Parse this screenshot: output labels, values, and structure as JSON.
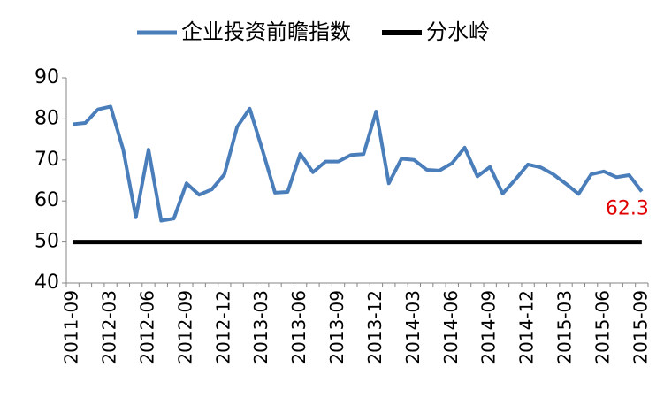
{
  "chart_data": {
    "type": "line",
    "categories": [
      "2011-09",
      null,
      null,
      "2012-03",
      null,
      null,
      "2012-06",
      null,
      null,
      "2012-09",
      null,
      null,
      "2012-12",
      null,
      null,
      "2013-03",
      null,
      null,
      "2013-06",
      null,
      null,
      "2013-09",
      null,
      null,
      "2013-12",
      null,
      null,
      "2014-03",
      null,
      null,
      "2014-06",
      null,
      null,
      "2014-09",
      null,
      null,
      "2014-12",
      null,
      null,
      "2015-03",
      null,
      null,
      "2015-06",
      null,
      null,
      "2015-09"
    ],
    "series": [
      {
        "name": "企业投资前瞻指数",
        "color": "#4a7ebb",
        "values": [
          78.7,
          79,
          82.3,
          83,
          72.5,
          56,
          72.5,
          55.2,
          55.7,
          64.3,
          61.5,
          62.8,
          66.5,
          78,
          82.5,
          72.5,
          62,
          62.2,
          71.5,
          67,
          69.6,
          69.6,
          71.2,
          71.4,
          81.8,
          64.3,
          70.3,
          70,
          67.6,
          67.4,
          69.2,
          73,
          66,
          68.3,
          61.8,
          65.2,
          68.9,
          68.2,
          66.5,
          64.2,
          61.7,
          66.5,
          67.2,
          65.8,
          66.3,
          62.3
        ]
      },
      {
        "name": "分水岭",
        "color": "#000000",
        "values": [
          50,
          50,
          50,
          50,
          50,
          50,
          50,
          50,
          50,
          50,
          50,
          50,
          50,
          50,
          50,
          50,
          50,
          50,
          50,
          50,
          50,
          50,
          50,
          50,
          50,
          50,
          50,
          50,
          50,
          50,
          50,
          50,
          50,
          50,
          50,
          50,
          50,
          50,
          50,
          50,
          50,
          50,
          50,
          50,
          50,
          50
        ]
      }
    ],
    "label_color": "#e00000",
    "ylim": [
      40,
      90
    ],
    "yticks": [
      40,
      50,
      60,
      70,
      80,
      90
    ],
    "grid": false,
    "legend": "top"
  }
}
